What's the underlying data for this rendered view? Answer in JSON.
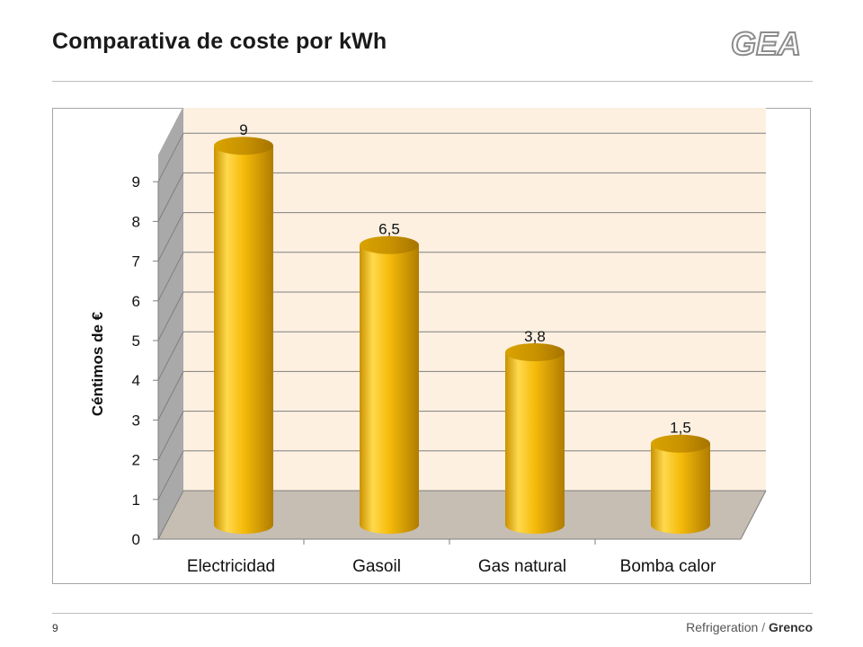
{
  "slide": {
    "title": "Comparativa de coste por kWh",
    "logo_text": "GEA",
    "page_number": "9",
    "footer_left": "Refrigeration",
    "footer_sep": "/",
    "footer_brand": "Grenco"
  },
  "colors": {
    "bar_light": "#ffd84a",
    "bar_mid": "#f2b705",
    "bar_dark": "#b88400",
    "wall": "#fdf0e0",
    "side_wall": "#a9a9a9",
    "floor": "#c6bdb3",
    "logo": "#8c8c8c"
  },
  "chart_data": {
    "type": "bar",
    "categories": [
      "Electricidad",
      "Gasoil",
      "Gas natural",
      "Bomba calor"
    ],
    "values": [
      9,
      6.5,
      3.8,
      1.5
    ],
    "data_labels": [
      "9",
      "6,5",
      "3,8",
      "1,5"
    ],
    "ylabel": "Céntimos de €",
    "ylim": [
      0,
      9
    ],
    "yticks": [
      0,
      1,
      2,
      3,
      4,
      5,
      6,
      7,
      8,
      9
    ],
    "grid": true,
    "style": "3d-cylinder"
  }
}
